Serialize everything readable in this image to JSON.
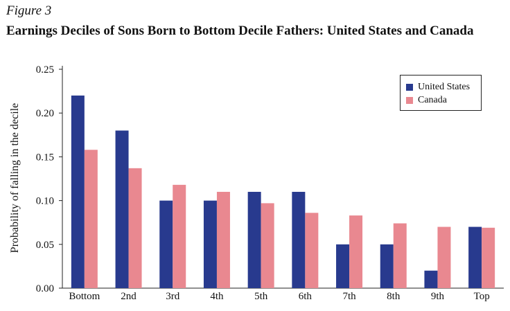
{
  "figure_label": "Figure 3",
  "chart_data": {
    "type": "bar",
    "title": "Earnings Deciles of Sons Born to Bottom Decile Fathers: United States and Canada",
    "ylabel": "Probability of falling in the decile",
    "xlabel": "",
    "categories": [
      "Bottom",
      "2nd",
      "3rd",
      "4th",
      "5th",
      "6th",
      "7th",
      "8th",
      "9th",
      "Top"
    ],
    "series": [
      {
        "name": "United States",
        "color": "#283a8e",
        "values": [
          0.22,
          0.18,
          0.1,
          0.1,
          0.11,
          0.11,
          0.05,
          0.05,
          0.02,
          0.07
        ]
      },
      {
        "name": "Canada",
        "color": "#e98890",
        "values": [
          0.158,
          0.137,
          0.118,
          0.11,
          0.097,
          0.086,
          0.083,
          0.074,
          0.07,
          0.069
        ]
      }
    ],
    "ylim": [
      0,
      0.25
    ],
    "yticks": [
      "0.00",
      "0.05",
      "0.10",
      "0.15",
      "0.20",
      "0.25"
    ],
    "grid": false,
    "legend_position": "top-right"
  }
}
